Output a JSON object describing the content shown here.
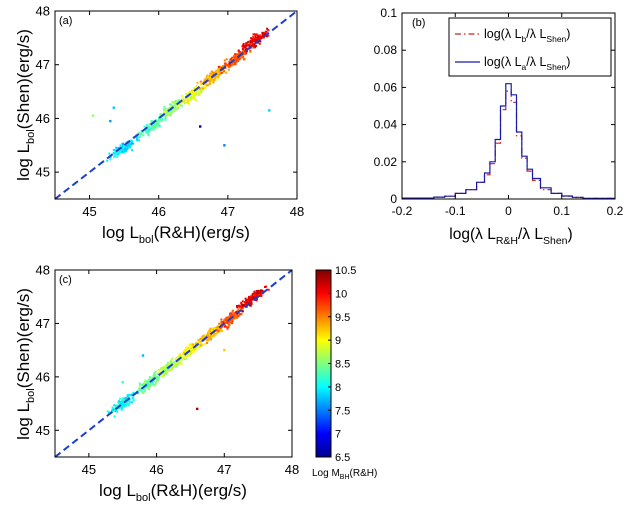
{
  "chart_data": [
    {
      "id": "a",
      "type": "scatter",
      "panel_label": "(a)",
      "xlabel_main": "log L",
      "xlabel_sub": "bol",
      "xlabel_tail": "(R&H)(erg/s)",
      "ylabel_main": "log L",
      "ylabel_sub": "bol",
      "ylabel_tail": "(Shen)(erg/s)",
      "xlim": [
        44.5,
        48
      ],
      "ylim": [
        44.5,
        48
      ],
      "xticks": [
        "45",
        "46",
        "47",
        "48"
      ],
      "yticks": [
        "45",
        "46",
        "47",
        "48"
      ],
      "diagonal": {
        "from": [
          44.5,
          44.5
        ],
        "to": [
          48,
          48
        ],
        "style": "dashed",
        "color": "#1a3fd0"
      },
      "color_by": "Log M_BH(R&H)",
      "clusters": [
        {
          "x": 45.5,
          "y": 45.45,
          "mass": 7.9
        },
        {
          "x": 45.9,
          "y": 45.85,
          "mass": 8.3
        },
        {
          "x": 46.2,
          "y": 46.2,
          "mass": 8.6
        },
        {
          "x": 46.5,
          "y": 46.45,
          "mass": 8.9
        },
        {
          "x": 46.8,
          "y": 46.8,
          "mass": 9.3
        },
        {
          "x": 47.1,
          "y": 47.1,
          "mass": 9.7
        },
        {
          "x": 47.4,
          "y": 47.45,
          "mass": 10.1
        }
      ],
      "outliers": [
        {
          "x": 45.05,
          "y": 46.05,
          "mass": 8.6
        },
        {
          "x": 45.3,
          "y": 45.95,
          "mass": 7.6
        },
        {
          "x": 45.35,
          "y": 46.2,
          "mass": 7.8
        },
        {
          "x": 46.6,
          "y": 45.85,
          "mass": 6.6
        },
        {
          "x": 47.6,
          "y": 46.15,
          "mass": 7.8
        },
        {
          "x": 46.95,
          "y": 45.5,
          "mass": 7.5
        }
      ]
    },
    {
      "id": "b",
      "type": "line",
      "panel_label": "(b)",
      "xlabel_parts": [
        "log(λ L",
        "R&H",
        "/λ L",
        "Shen",
        ")"
      ],
      "xlim": [
        -0.2,
        0.2
      ],
      "ylim": [
        0,
        0.1
      ],
      "xticks": [
        "-0.2",
        "-0.1",
        "0",
        "0.1",
        "0.2"
      ],
      "yticks": [
        "0",
        "0.02",
        "0.04",
        "0.06",
        "0.08",
        "0.1"
      ],
      "xtick_values": [
        -0.2,
        -0.1,
        0,
        0.1,
        0.2
      ],
      "ytick_values": [
        0,
        0.02,
        0.04,
        0.06,
        0.08,
        0.1
      ],
      "x": [
        -0.15,
        -0.13,
        -0.11,
        -0.09,
        -0.07,
        -0.05,
        -0.04,
        -0.03,
        -0.02,
        -0.01,
        0.0,
        0.01,
        0.02,
        0.03,
        0.04,
        0.05,
        0.07,
        0.09,
        0.11,
        0.13,
        0.15
      ],
      "series": [
        {
          "name": "log(λ L_b/λ L_Shen)",
          "legend_parts": [
            "log(λ L",
            "b",
            "/λ L",
            "Shen",
            ")"
          ],
          "color": "#cc2222",
          "style": "dashdot",
          "values": [
            0.0005,
            0.001,
            0.0015,
            0.003,
            0.005,
            0.009,
            0.013,
            0.019,
            0.03,
            0.048,
            0.058,
            0.052,
            0.034,
            0.022,
            0.015,
            0.01,
            0.005,
            0.003,
            0.0015,
            0.0008,
            0.0004
          ]
        },
        {
          "name": "log(λ L_a/λ L_Shen)",
          "legend_parts": [
            "log(λ L",
            "a",
            "/λ L",
            "Shen",
            ")"
          ],
          "color": "#1a1aaa",
          "style": "solid",
          "values": [
            0.0005,
            0.001,
            0.0015,
            0.003,
            0.005,
            0.009,
            0.014,
            0.02,
            0.032,
            0.05,
            0.062,
            0.056,
            0.036,
            0.023,
            0.016,
            0.011,
            0.006,
            0.003,
            0.0016,
            0.0009,
            0.0004
          ]
        }
      ]
    },
    {
      "id": "c",
      "type": "scatter",
      "panel_label": "(c)",
      "xlabel_main": "log L",
      "xlabel_sub": "bol",
      "xlabel_tail": "(R&H)(erg/s)",
      "ylabel_main": "log L",
      "ylabel_sub": "bol",
      "ylabel_tail": "(Shen)(erg/s)",
      "xlim": [
        44.5,
        48
      ],
      "ylim": [
        44.5,
        48
      ],
      "xticks": [
        "45",
        "46",
        "47",
        "48"
      ],
      "yticks": [
        "45",
        "46",
        "47",
        "48"
      ],
      "diagonal": {
        "from": [
          44.5,
          44.5
        ],
        "to": [
          48,
          48
        ],
        "style": "dashed",
        "color": "#1a3fd0"
      },
      "color_by": "Log M_BH(R&H)",
      "clusters": [
        {
          "x": 45.5,
          "y": 45.5,
          "mass": 8.0
        },
        {
          "x": 45.9,
          "y": 45.9,
          "mass": 8.4
        },
        {
          "x": 46.2,
          "y": 46.2,
          "mass": 8.7
        },
        {
          "x": 46.5,
          "y": 46.5,
          "mass": 9.0
        },
        {
          "x": 46.8,
          "y": 46.8,
          "mass": 9.3
        },
        {
          "x": 47.1,
          "y": 47.1,
          "mass": 9.7
        },
        {
          "x": 47.4,
          "y": 47.45,
          "mass": 10.1
        }
      ],
      "outliers": [
        {
          "x": 46.6,
          "y": 45.4,
          "mass": 10.3
        },
        {
          "x": 45.8,
          "y": 46.4,
          "mass": 7.7
        },
        {
          "x": 47.0,
          "y": 46.5,
          "mass": 9.2
        },
        {
          "x": 45.5,
          "y": 45.9,
          "mass": 8.2
        }
      ]
    }
  ],
  "colorbar": {
    "label_main": "Log M",
    "label_sub": "BH",
    "label_tail": "(R&H)",
    "range": [
      6.5,
      10.5
    ],
    "ticks": [
      "10.5",
      "10",
      "9.5",
      "9",
      "8.5",
      "8",
      "7.5",
      "7",
      "6.5"
    ],
    "tick_values": [
      10.5,
      10,
      9.5,
      9,
      8.5,
      8,
      7.5,
      7,
      6.5
    ],
    "colormap": "jet"
  }
}
